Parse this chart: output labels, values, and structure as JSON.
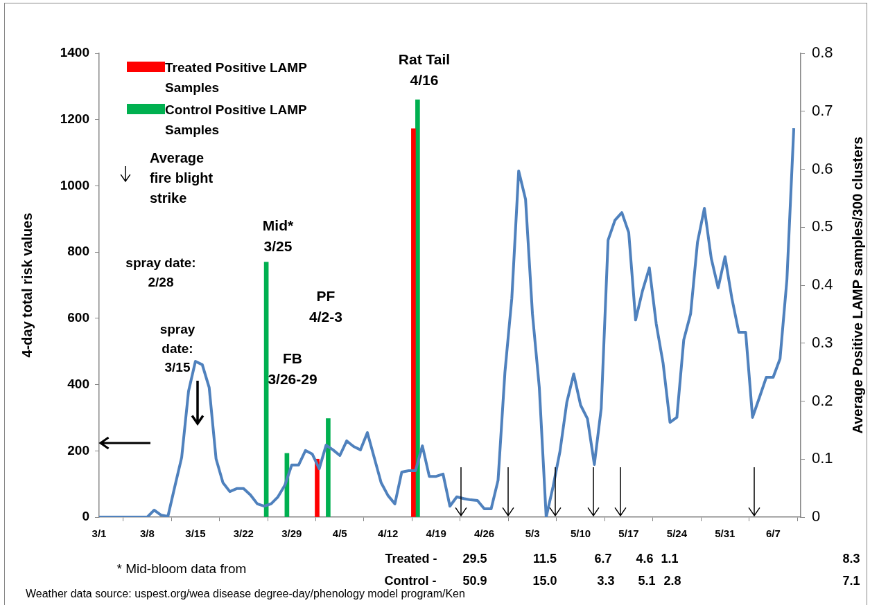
{
  "chart_data": {
    "type": "line",
    "ylabel": "4-day total risk values",
    "y2label": "Average Positive LAMP samples/300 clusters",
    "xlim": [
      "--03-01",
      "--06-11"
    ],
    "xticks": [
      {
        "value": "--03-01",
        "label": "3/1"
      },
      {
        "value": "--03-08",
        "label": "3/8"
      },
      {
        "value": "--03-15",
        "label": "3/15"
      },
      {
        "value": "--03-22",
        "label": "3/22"
      },
      {
        "value": "--03-29",
        "label": "3/29"
      },
      {
        "value": "--04-05",
        "label": "4/5"
      },
      {
        "value": "--04-12",
        "label": "4/12"
      },
      {
        "value": "--04-19",
        "label": "4/19"
      },
      {
        "value": "--04-26",
        "label": "4/26"
      },
      {
        "value": "--05-03",
        "label": "5/3"
      },
      {
        "value": "--05-10",
        "label": "5/10"
      },
      {
        "value": "--05-17",
        "label": "5/17"
      },
      {
        "value": "--05-24",
        "label": "5/24"
      },
      {
        "value": "--05-31",
        "label": "5/31"
      },
      {
        "value": "--06-07",
        "label": "6/7"
      }
    ],
    "ylim": [
      0,
      1400
    ],
    "yticks": [
      0,
      200,
      400,
      600,
      800,
      1000,
      1200,
      1400
    ],
    "y2lim": [
      0,
      0.8
    ],
    "y2ticks": [
      0,
      0.1,
      0.2,
      0.3,
      0.4,
      0.5,
      0.6,
      0.7,
      0.8
    ],
    "grid": false,
    "legend": "top left",
    "marker": "none",
    "line_style": "solid",
    "series": [
      {
        "color": "#4f81bd",
        "x": [
          "--03-01",
          "--03-02",
          "--03-03",
          "--03-04",
          "--03-05",
          "--03-06",
          "--03-07",
          "--03-08",
          "--03-09",
          "--03-10",
          "--03-11",
          "--03-12",
          "--03-13",
          "--03-14",
          "--03-15",
          "--03-16",
          "--03-17",
          "--03-18",
          "--03-19",
          "--03-20",
          "--03-21",
          "--03-22",
          "--03-23",
          "--03-24",
          "--03-25",
          "--03-26",
          "--03-27",
          "--03-28",
          "--03-29",
          "--03-30",
          "--03-31",
          "--04-01",
          "--04-02",
          "--04-03",
          "--04-04",
          "--04-05",
          "--04-06",
          "--04-07",
          "--04-08",
          "--04-09",
          "--04-11",
          "--04-12",
          "--04-13",
          "--04-14",
          "--04-15",
          "--04-16",
          "--04-17",
          "--04-18",
          "--04-19",
          "--04-20",
          "--04-21",
          "--04-22",
          "--04-23",
          "--04-24",
          "--04-25",
          "--04-26",
          "--04-27",
          "--04-28",
          "--04-29",
          "--04-30",
          "--05-01",
          "--05-02",
          "--05-03",
          "--05-04",
          "--05-05",
          "--05-06",
          "--05-07",
          "--05-08",
          "--05-09",
          "--05-10",
          "--05-11",
          "--05-12",
          "--05-13",
          "--05-14",
          "--05-15",
          "--05-16",
          "--05-17",
          "--05-18",
          "--05-19",
          "--05-20",
          "--05-21",
          "--05-22",
          "--05-23",
          "--05-24",
          "--05-25",
          "--05-26",
          "--05-27",
          "--05-28",
          "--05-29",
          "--05-30",
          "--05-31",
          "--06-01",
          "--06-02",
          "--06-03",
          "--06-04",
          "--06-05",
          "--06-06",
          "--06-07",
          "--06-08",
          "--06-09",
          "--06-10"
        ],
        "values": [
          0,
          0,
          0,
          0,
          0,
          0,
          0,
          0,
          21,
          6,
          2,
          92,
          180,
          380,
          470,
          460,
          391,
          176,
          104,
          77,
          86,
          86,
          67,
          40,
          33,
          40,
          61,
          96,
          157,
          157,
          201,
          190,
          146,
          217,
          203,
          186,
          230,
          213,
          203,
          255,
          104,
          65,
          40,
          136,
          140,
          140,
          215,
          123,
          123,
          130,
          33,
          61,
          56,
          52,
          50,
          25,
          25,
          111,
          437,
          660,
          1045,
          959,
          614,
          391,
          0,
          92,
          198,
          347,
          432,
          338,
          297,
          159,
          328,
          836,
          896,
          919,
          859,
          595,
          683,
          752,
          583,
          464,
          286,
          301,
          535,
          614,
          830,
          932,
          781,
          692,
          786,
          660,
          558,
          558,
          301,
          361,
          422,
          422,
          478,
          717,
          1174
        ]
      },
      {
        "type": "bar",
        "axis": "y2",
        "name": "Treated Positive LAMP Samples",
        "color": "#ff0000",
        "x": [
          "--04-02",
          "--04-16"
        ],
        "values": [
          0.1,
          0.67
        ]
      },
      {
        "type": "bar",
        "axis": "y2",
        "name": "Control Positive LAMP Samples",
        "color": "#00b050",
        "x": [
          "--03-25",
          "--03-28",
          "--04-03",
          "--04-16"
        ],
        "values": [
          0.44,
          0.11,
          0.17,
          0.72
        ]
      }
    ],
    "annotations": [
      "Mid*\n3/25",
      "FB\n3/26-29",
      "PF\n4/2-3",
      "Rat Tail\n4/16",
      "Average\nfire blight\nstrike",
      "spray date:\n2/28",
      "spray\ndate:\n3/15",
      "* Mid-bloom data from",
      "Weather data source:  uspest.org/wea disease degree-day/phenology model program/Ken",
      "Treated -",
      "29.5",
      "11.5",
      "6.7",
      "4.6",
      "1.1",
      "8.3",
      "Control -",
      "50.9",
      "15.0",
      "3.3",
      "5.1",
      "2.8",
      "7.1"
    ]
  }
}
